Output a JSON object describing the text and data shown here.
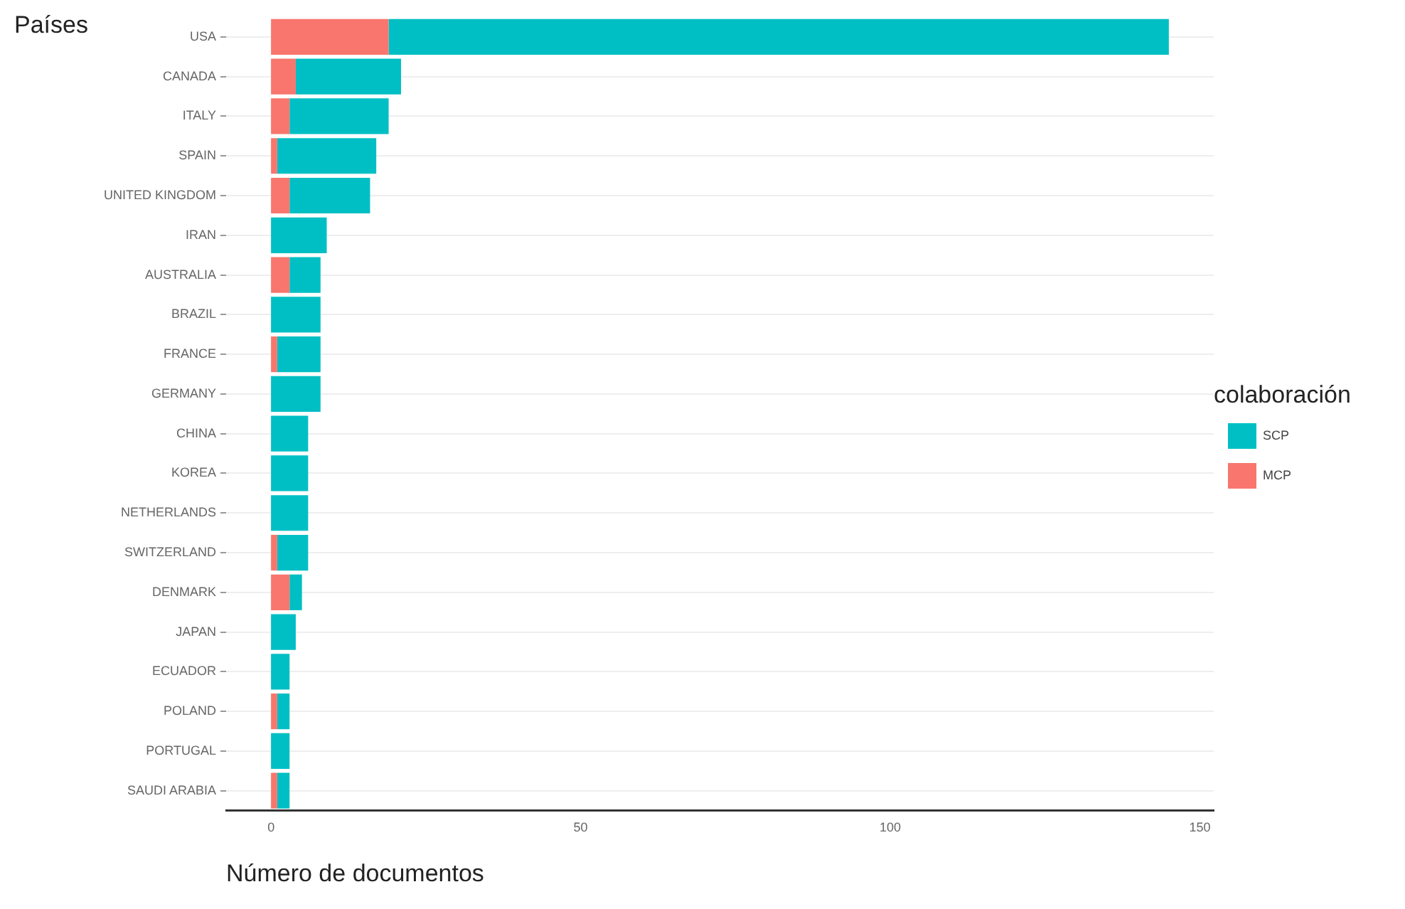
{
  "chart_data": {
    "type": "bar",
    "orientation": "horizontal",
    "stacked": true,
    "ylabel": "Países",
    "xlabel": "Número de documentos",
    "legend_title": "colaboración",
    "categories": [
      "USA",
      "CANADA",
      "ITALY",
      "SPAIN",
      "UNITED KINGDOM",
      "IRAN",
      "AUSTRALIA",
      "BRAZIL",
      "FRANCE",
      "GERMANY",
      "CHINA",
      "KOREA",
      "NETHERLANDS",
      "SWITZERLAND",
      "DENMARK",
      "JAPAN",
      "ECUADOR",
      "POLAND",
      "PORTUGAL",
      "SAUDI ARABIA"
    ],
    "series": [
      {
        "name": "MCP",
        "color": "#f8766d",
        "values": [
          19,
          4,
          3,
          1,
          3,
          0,
          3,
          0,
          1,
          0,
          0,
          0,
          0,
          1,
          3,
          0,
          0,
          1,
          0,
          1
        ]
      },
      {
        "name": "SCP",
        "color": "#00bfc4",
        "values": [
          126,
          17,
          16,
          16,
          13,
          9,
          5,
          8,
          7,
          8,
          6,
          6,
          6,
          5,
          2,
          4,
          3,
          2,
          3,
          2
        ]
      }
    ],
    "xlim": [
      -7.25,
      152.25
    ],
    "xticks": [
      0,
      50,
      100,
      150
    ],
    "grid": "y",
    "legend": "right"
  }
}
